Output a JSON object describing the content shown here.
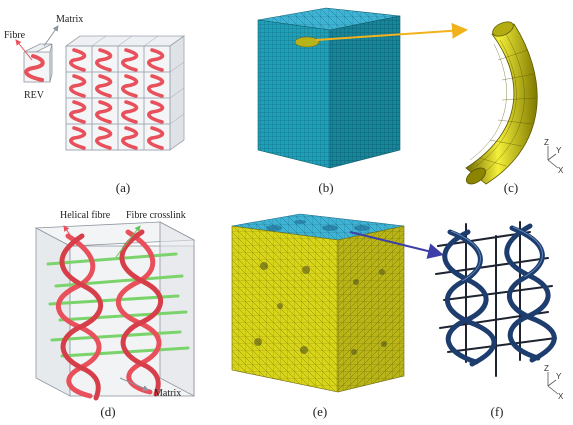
{
  "panels": {
    "a": {
      "caption": "(a)",
      "fibre_label": "Fibre",
      "matrix_label": "Matrix",
      "rev_label": "REV"
    },
    "b": {
      "caption": "(b)"
    },
    "c": {
      "caption": "(c)",
      "axis_z": "Z",
      "axis_y": "Y",
      "axis_x": "X"
    },
    "d": {
      "caption": "(d)",
      "helical_label": "Helical fibre",
      "crosslink_label": "Fibre crosslink",
      "matrix_label": "Matrix"
    },
    "e": {
      "caption": "(e)"
    },
    "f": {
      "caption": "(f)",
      "axis_z": "Z",
      "axis_y": "Y",
      "axis_x": "X"
    }
  },
  "colors": {
    "fibre_red": "#e8515b",
    "matrix_grey": "#9aa3ad",
    "mesh_cyan": "#1fa0b8",
    "mesh_yellow": "#d8d417",
    "crosslink_green": "#7ad46b",
    "fibre_blue": "#1d3d6e",
    "arrow_yellow": "#f2b21b",
    "arrow_blue": "#3e3fa8"
  }
}
